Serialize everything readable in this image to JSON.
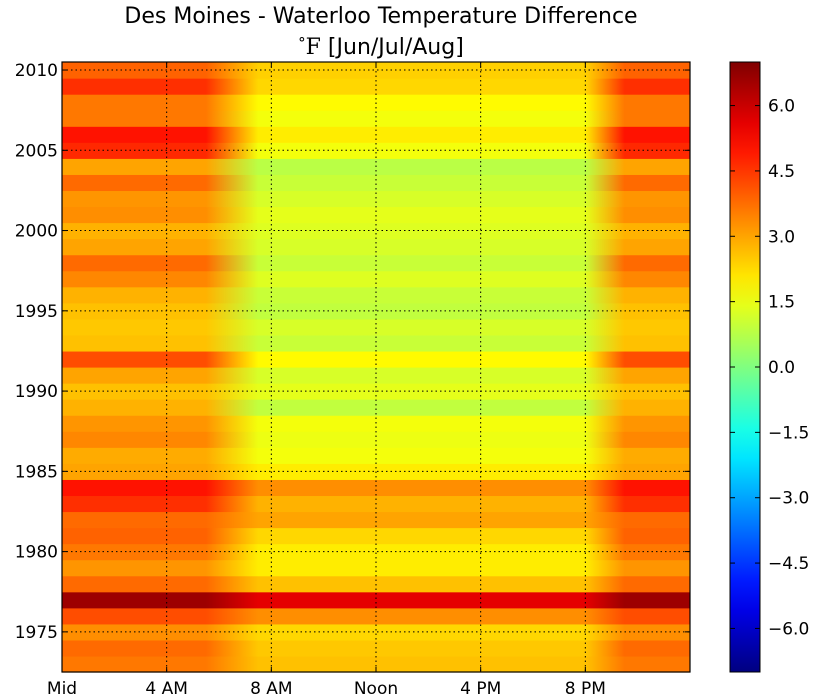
{
  "chart_data": {
    "type": "heatmap",
    "title": "Des Moines - Waterloo Temperature Difference",
    "subtitle_degree": "°",
    "subtitle_unit": "F",
    "subtitle_rest": " [Jun/Jul/Aug]",
    "xlabel": "",
    "ylabel": "",
    "xlim": [
      0,
      24
    ],
    "ylim": [
      1972.5,
      2010.5
    ],
    "x_ticks": [
      {
        "value": 0,
        "label": "Mid"
      },
      {
        "value": 4,
        "label": "4 AM"
      },
      {
        "value": 8,
        "label": "8 AM"
      },
      {
        "value": 12,
        "label": "Noon"
      },
      {
        "value": 16,
        "label": "4 PM"
      },
      {
        "value": 20,
        "label": "8 PM"
      }
    ],
    "y_ticks": [
      {
        "value": 1975,
        "label": "1975"
      },
      {
        "value": 1980,
        "label": "1980"
      },
      {
        "value": 1985,
        "label": "1985"
      },
      {
        "value": 1990,
        "label": "1990"
      },
      {
        "value": 1995,
        "label": "1995"
      },
      {
        "value": 2000,
        "label": "2000"
      },
      {
        "value": 2005,
        "label": "2005"
      },
      {
        "value": 2010,
        "label": "2010"
      }
    ],
    "grid": true,
    "colormap": "jet",
    "color_range": [
      -7,
      7
    ],
    "colorbar_ticks": [
      {
        "value": 6.0,
        "label": "6.0"
      },
      {
        "value": 4.5,
        "label": "4.5"
      },
      {
        "value": 3.0,
        "label": "3.0"
      },
      {
        "value": 1.5,
        "label": "1.5"
      },
      {
        "value": 0.0,
        "label": "0.0"
      },
      {
        "value": -1.5,
        "label": "−1.5"
      },
      {
        "value": -3.0,
        "label": "−3.0"
      },
      {
        "value": -4.5,
        "label": "−4.5"
      },
      {
        "value": -6.0,
        "label": "−6.0"
      }
    ],
    "profile_hours": [
      0,
      5.5,
      7.5,
      20,
      21.5,
      24
    ],
    "years": [
      1973,
      1974,
      1975,
      1976,
      1977,
      1978,
      1979,
      1980,
      1981,
      1982,
      1983,
      1984,
      1985,
      1986,
      1987,
      1988,
      1989,
      1990,
      1991,
      1992,
      1993,
      1994,
      1995,
      1996,
      1997,
      1998,
      1999,
      2000,
      2001,
      2002,
      2003,
      2004,
      2005,
      2006,
      2007,
      2008,
      2009,
      2010
    ],
    "night_values": [
      3.6,
      3.8,
      3.3,
      4.2,
      6.6,
      3.8,
      3.2,
      3.6,
      3.9,
      3.8,
      4.6,
      5.0,
      3.0,
      2.9,
      3.4,
      3.2,
      2.8,
      2.6,
      3.0,
      4.2,
      2.6,
      2.5,
      2.6,
      2.8,
      3.4,
      3.8,
      3.0,
      2.8,
      3.3,
      3.2,
      3.8,
      3.0,
      4.7,
      5.0,
      3.6,
      3.6,
      4.6,
      3.9
    ],
    "day_values": [
      2.6,
      2.5,
      2.3,
      3.3,
      5.6,
      2.6,
      2.0,
      2.0,
      2.3,
      3.0,
      2.8,
      3.3,
      2.0,
      1.6,
      1.5,
      1.6,
      0.9,
      1.4,
      1.2,
      1.8,
      1.0,
      1.2,
      0.9,
      1.0,
      1.3,
      1.0,
      1.2,
      1.3,
      1.4,
      1.2,
      1.0,
      0.8,
      1.6,
      2.0,
      1.6,
      1.8,
      2.3,
      2.4
    ]
  }
}
